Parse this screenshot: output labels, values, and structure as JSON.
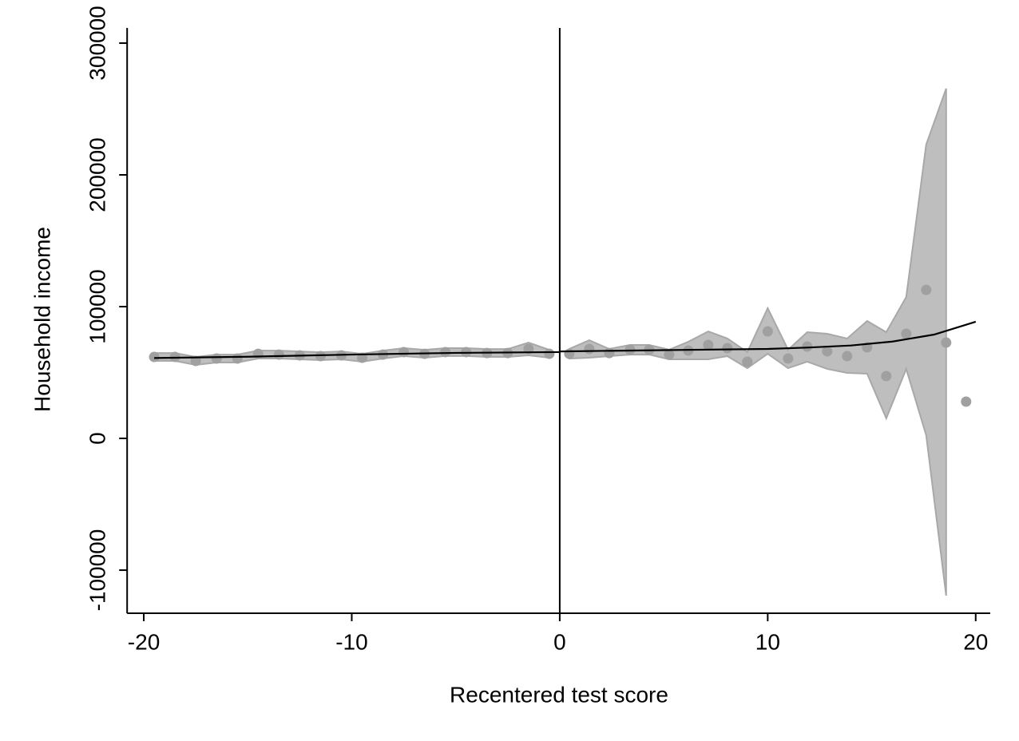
{
  "chart_data": {
    "type": "scatter",
    "xlabel": "Recentered test score",
    "ylabel": "Household income",
    "xlim": [
      -20.8,
      20.7
    ],
    "ylim": [
      -132700,
      311500
    ],
    "xticks": [
      -20,
      -10,
      0,
      10,
      20
    ],
    "yticks": [
      -100000,
      0,
      100000,
      200000,
      300000
    ],
    "vline": 0,
    "point_color": "#a0a0a0",
    "band_color": "#bebebe",
    "band_edge_color": "#a8a8a8",
    "fit_color": "#000000",
    "points": {
      "x": [
        -19.5,
        -18.5,
        -17.5,
        -16.5,
        -15.5,
        -14.5,
        -13.5,
        -12.5,
        -11.5,
        -10.5,
        -9.5,
        -8.5,
        -7.5,
        -6.5,
        -5.5,
        -4.5,
        -3.5,
        -2.5,
        -1.5,
        -0.5,
        0.46,
        1.42,
        2.38,
        3.38,
        4.3,
        5.26,
        6.18,
        7.14,
        8.06,
        9.02,
        10,
        10.98,
        11.9,
        12.86,
        13.82,
        14.78,
        15.7,
        16.66,
        17.62,
        18.58,
        19.54
      ],
      "values": [
        61800,
        61800,
        58800,
        60600,
        60600,
        64200,
        63600,
        63000,
        62400,
        63000,
        61200,
        63600,
        65500,
        64200,
        65500,
        65500,
        64800,
        64800,
        67900,
        64200,
        64200,
        67900,
        64800,
        67300,
        67300,
        63600,
        66700,
        70900,
        68500,
        58200,
        81200,
        60600,
        69700,
        66100,
        62400,
        69100,
        47300,
        79400,
        112700,
        72700,
        27900
      ]
    },
    "bands": [
      {
        "x": [
          -19.5,
          -18.5,
          -17.5,
          -16.5,
          -15.5,
          -14.5,
          -13.5,
          -12.5,
          -11.5,
          -10.5,
          -9.5,
          -8.5,
          -7.5,
          -6.5,
          -5.5,
          -4.5,
          -3.5,
          -2.5,
          -1.5,
          -0.5
        ],
        "lower": [
          58800,
          58800,
          55800,
          57600,
          57600,
          60600,
          60600,
          60000,
          59400,
          60000,
          58200,
          60600,
          62500,
          61200,
          62500,
          62500,
          61800,
          61800,
          63000,
          61200
        ],
        "upper": [
          64800,
          64800,
          61800,
          63600,
          63600,
          66700,
          66600,
          66000,
          65400,
          66000,
          64200,
          66600,
          68500,
          67200,
          68500,
          68500,
          67800,
          67800,
          72700,
          67200
        ]
      },
      {
        "x": [
          0.46,
          1.42,
          2.38,
          3.38,
          4.3,
          5.26,
          6.18,
          7.14,
          8.06,
          9.02,
          10,
          10.98,
          11.9,
          12.86,
          13.82,
          14.78,
          15.7,
          16.66,
          17.62,
          18.58
        ],
        "lower": [
          60600,
          61200,
          62400,
          63600,
          63600,
          60000,
          60000,
          60000,
          62400,
          53300,
          64200,
          53300,
          58200,
          52700,
          49700,
          49100,
          15200,
          52700,
          2400,
          -119400
        ],
        "upper": [
          67900,
          74500,
          67900,
          70900,
          70900,
          67300,
          73300,
          81200,
          75800,
          65500,
          98800,
          67300,
          80600,
          79400,
          75800,
          89100,
          80600,
          107300,
          223000,
          265500
        ]
      }
    ],
    "fits": [
      {
        "x": [
          -19.5,
          -15,
          -10,
          -5,
          0
        ],
        "values": [
          61000,
          62000,
          63600,
          64900,
          65500
        ]
      },
      {
        "x": [
          0,
          5,
          10,
          12,
          14,
          16,
          18,
          20
        ],
        "values": [
          66000,
          67000,
          67900,
          69000,
          70500,
          73500,
          78800,
          88500
        ]
      }
    ]
  }
}
